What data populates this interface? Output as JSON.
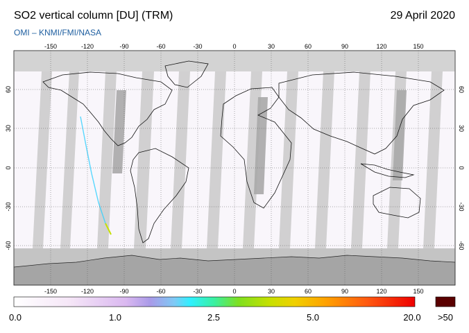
{
  "header": {
    "title": "SO2 vertical column [DU] (TRM)",
    "date": "29 April 2020",
    "credit": "OMI  –  KNMI/FMI/NASA"
  },
  "map": {
    "lon_ticks": [
      "-150",
      "-120",
      "-90",
      "-60",
      "-30",
      "0",
      "30",
      "60",
      "90",
      "120",
      "150"
    ],
    "lat_ticks": [
      "60",
      "30",
      "0",
      "-30",
      "-60"
    ]
  },
  "colorbar": {
    "labels": [
      "0.0",
      "1.0",
      "2.5",
      "5.0",
      "20.0"
    ],
    "overflow_label": ">50",
    "overflow_color": "#5a0000"
  }
}
